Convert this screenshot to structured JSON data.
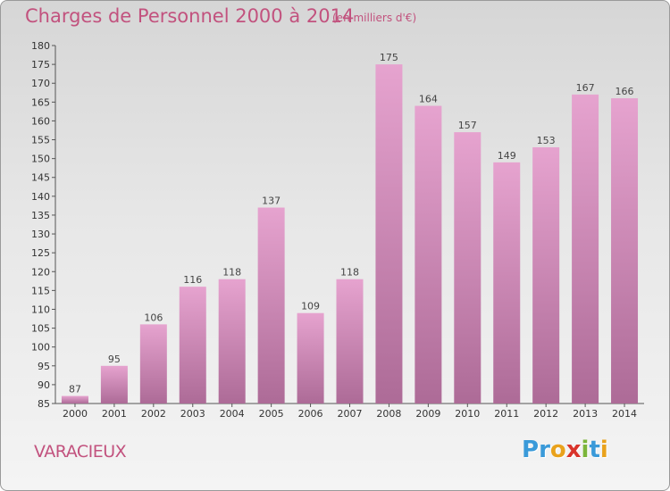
{
  "header": {
    "title": "Charges de Personnel 2000 à 2014",
    "subtitle": "(en milliers d'€)"
  },
  "footer": {
    "commune": "VARACIEUX",
    "logo_letters": [
      {
        "ch": "P",
        "color": "#3a9ad9"
      },
      {
        "ch": "r",
        "color": "#3a9ad9"
      },
      {
        "ch": "o",
        "color": "#e9a21c"
      },
      {
        "ch": "x",
        "color": "#d9342b"
      },
      {
        "ch": "i",
        "color": "#7cb53a"
      },
      {
        "ch": "t",
        "color": "#3a9ad9"
      },
      {
        "ch": "i",
        "color": "#e9a21c"
      }
    ]
  },
  "chart_data": {
    "type": "bar",
    "title": "Charges de Personnel 2000 à 2014",
    "subtitle": "(en milliers d'€)",
    "xlabel": "",
    "ylabel": "",
    "categories": [
      "2000",
      "2001",
      "2002",
      "2003",
      "2004",
      "2005",
      "2006",
      "2007",
      "2008",
      "2009",
      "2010",
      "2011",
      "2012",
      "2013",
      "2014"
    ],
    "values": [
      87,
      95,
      106,
      116,
      118,
      137,
      109,
      118,
      175,
      164,
      157,
      149,
      153,
      167,
      166
    ],
    "ylim": [
      85,
      180
    ],
    "ytick_step": 5,
    "grid": false,
    "bar_color_top": "#e6a3cf",
    "bar_color_bottom": "#ad6b97"
  }
}
